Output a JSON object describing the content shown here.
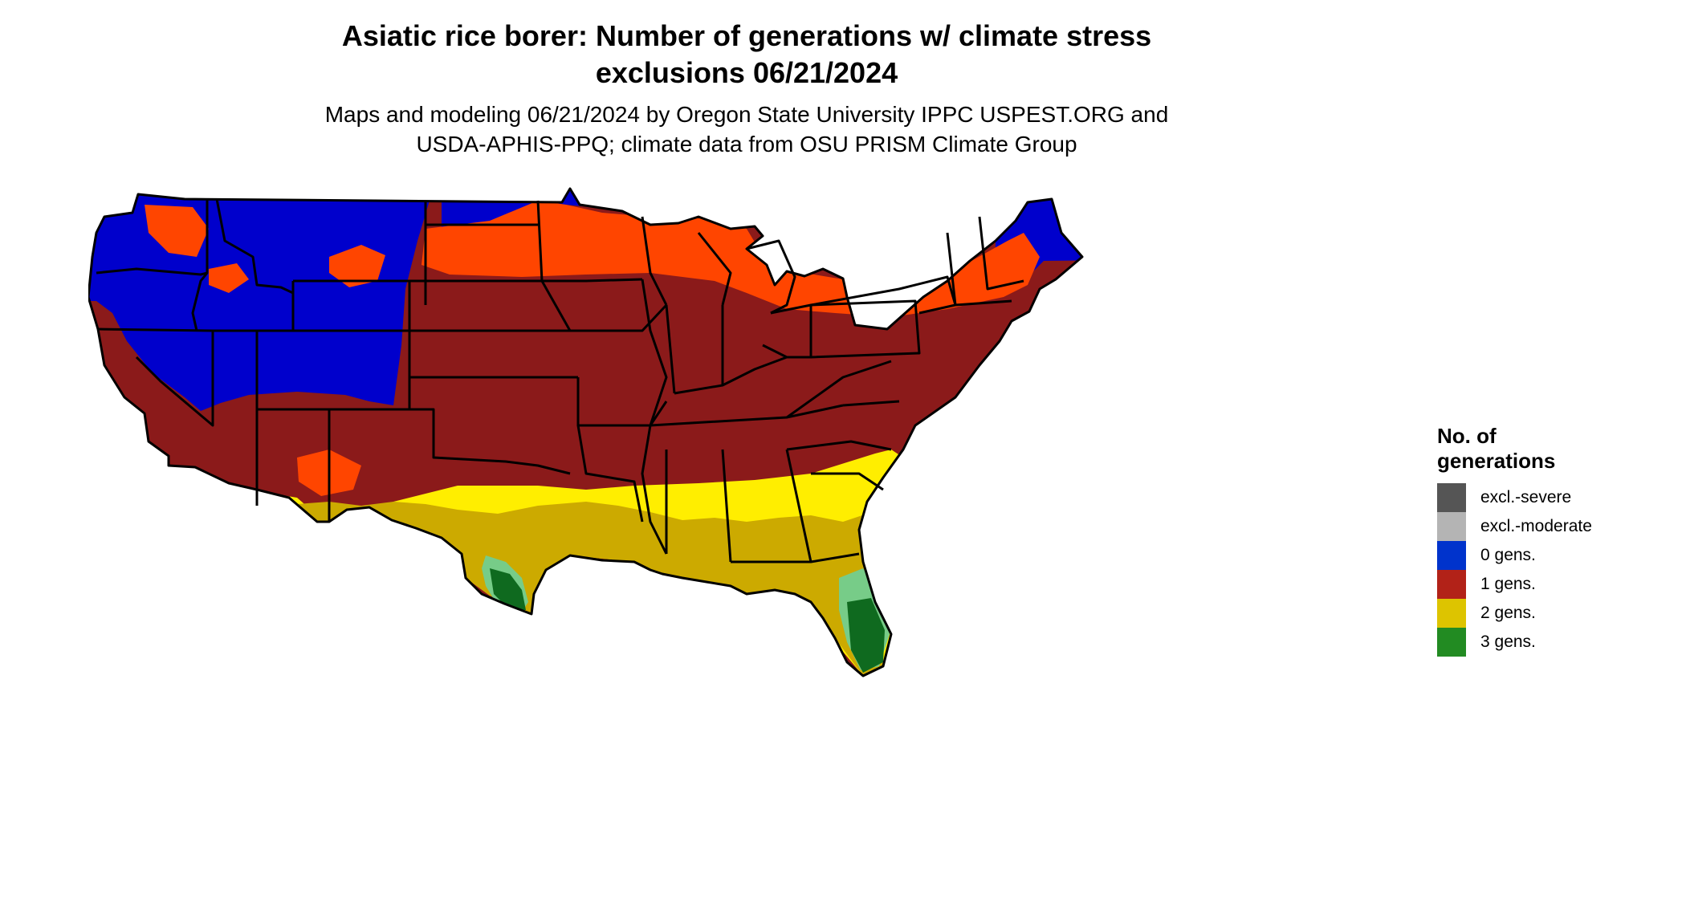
{
  "header": {
    "title_line1": "Asiatic rice borer: Number of generations w/ climate stress",
    "title_line2": "exclusions 06/21/2024",
    "subtitle_line1": "Maps and modeling 06/21/2024 by Oregon State University IPPC USPEST.ORG and",
    "subtitle_line2": "USDA-APHIS-PPQ; climate data from OSU PRISM Climate Group"
  },
  "legend": {
    "title_line1": "No. of",
    "title_line2": "generations",
    "items": [
      {
        "label": "excl.-severe",
        "color": "#555555"
      },
      {
        "label": "excl.-moderate",
        "color": "#b4b4b4"
      },
      {
        "label": "0 gens.",
        "color": "#0033cc"
      },
      {
        "label": "1 gens.",
        "color": "#b22218"
      },
      {
        "label": "2 gens.",
        "color": "#ddc400"
      },
      {
        "label": "3 gens.",
        "color": "#228b22"
      }
    ]
  },
  "map_colors": {
    "zero_gens": "#0000cc",
    "one_gen_dark": "#8b1a1a",
    "one_gen_orange": "#ff4500",
    "two_gens_yellow": "#ffee00",
    "two_gens_olive": "#ccaa00",
    "three_gens_light": "#77cc88",
    "three_gens_dark": "#0f6a1f"
  }
}
